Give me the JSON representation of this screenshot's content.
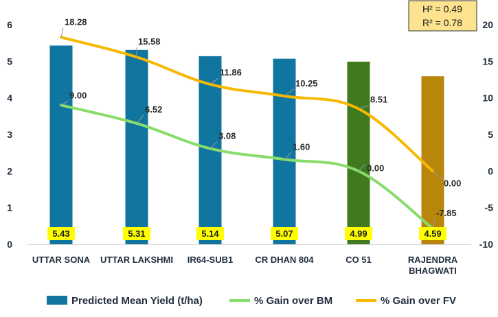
{
  "chart_data": {
    "type": "bar+line",
    "categories": [
      "UTTAR SONA",
      "UTTAR LAKSHMI",
      "IR64-SUB1",
      "CR DHAN 804",
      "CO 51",
      "RAJENDRA BHAGWATI"
    ],
    "category_lines": [
      [
        "UTTAR SONA"
      ],
      [
        "UTTAR LAKSHMI"
      ],
      [
        "IR64-SUB1"
      ],
      [
        "CR DHAN 804"
      ],
      [
        "CO 51"
      ],
      [
        "RAJENDRA",
        "BHAGWATI"
      ]
    ],
    "bars": {
      "name": "Predicted Mean Yield (t/ha)",
      "values": [
        5.43,
        5.31,
        5.14,
        5.07,
        4.99,
        4.59
      ],
      "labels": [
        "5.43",
        "5.31",
        "5.14",
        "5.07",
        "4.99",
        "4.59"
      ],
      "colors": [
        "#11769f",
        "#11769f",
        "#11769f",
        "#11769f",
        "#3f7a1e",
        "#b8860b"
      ],
      "label_bg": "#ffff00"
    },
    "lines": [
      {
        "name": "% Gain over BM",
        "color": "#88dc6a",
        "values": [
          9.0,
          6.52,
          3.08,
          1.6,
          0.0,
          -7.85
        ],
        "labels": [
          "9.00",
          "6.52",
          "3.08",
          "1.60",
          "0.00",
          "-7.85"
        ]
      },
      {
        "name": "% Gain over FV",
        "color": "#f7b800",
        "values": [
          18.28,
          15.58,
          11.86,
          10.25,
          8.51,
          0.0
        ],
        "labels": [
          "18.28",
          "15.58",
          "11.86",
          "10.25",
          "8.51",
          "0.00"
        ]
      }
    ],
    "y_left": {
      "min": 0,
      "max": 6,
      "ticks": [
        "0",
        "1",
        "2",
        "3",
        "4",
        "5",
        "6"
      ]
    },
    "y_right": {
      "min": -10,
      "max": 20,
      "ticks": [
        "-10",
        "-5",
        "0",
        "5",
        "10",
        "15",
        "20"
      ]
    },
    "legend_position": "bottom",
    "grid": false,
    "stats": {
      "h2": "H² = 0.49",
      "r2": "R² = 0.78",
      "background": "#fde38f",
      "border": "#333333"
    }
  }
}
